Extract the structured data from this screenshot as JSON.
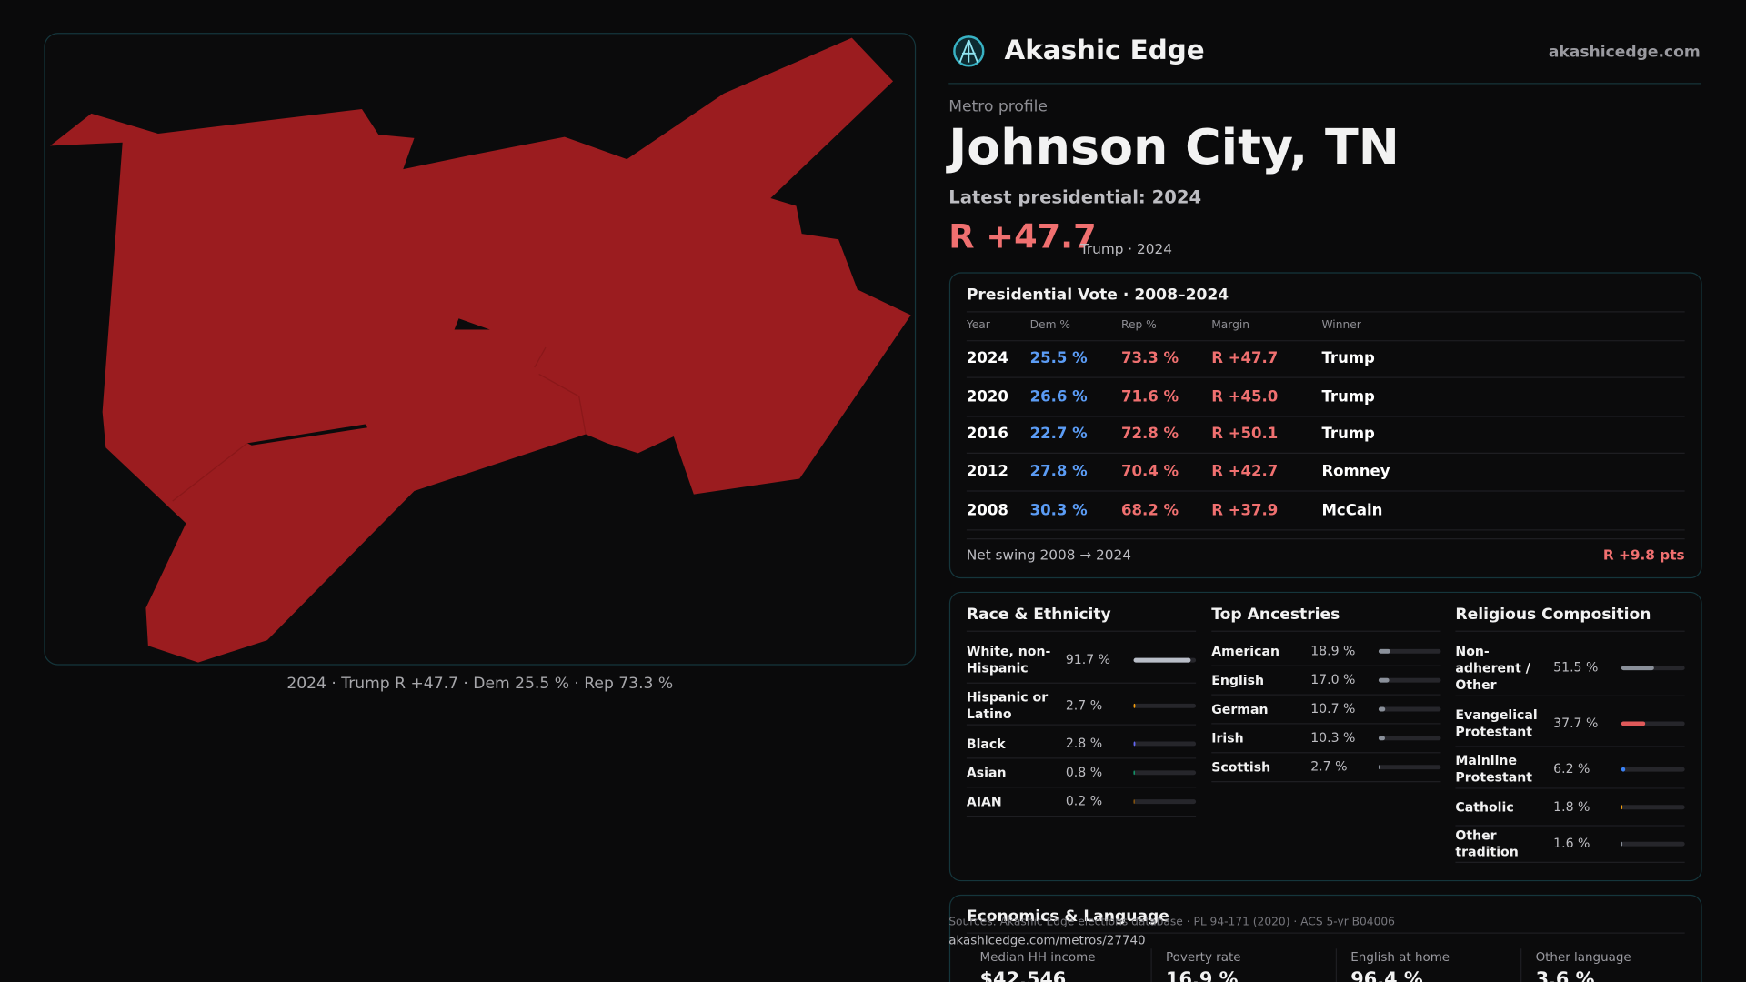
{
  "brand": {
    "name": "Akashic Edge",
    "url": "akashicedge.com"
  },
  "map_caption": "2024 · Trump R +47.7 · Dem 25.5 % · Rep 73.3 %",
  "header": {
    "kicker": "Metro profile",
    "title": "Johnson City, TN",
    "latest": "Latest presidential: 2024",
    "margin": "R +47.7",
    "margin_note": "Trump · 2024"
  },
  "vote_table": {
    "title": "Presidential Vote · 2008–2024",
    "columns": [
      "Year",
      "Dem %",
      "Rep %",
      "Margin",
      "Winner"
    ],
    "rows": [
      [
        "2024",
        "25.5 %",
        "73.3 %",
        "R +47.7",
        "Trump"
      ],
      [
        "2020",
        "26.6 %",
        "71.6 %",
        "R +45.0",
        "Trump"
      ],
      [
        "2016",
        "22.7 %",
        "72.8 %",
        "R +50.1",
        "Trump"
      ],
      [
        "2012",
        "27.8 %",
        "70.4 %",
        "R +42.7",
        "Romney"
      ],
      [
        "2008",
        "30.3 %",
        "68.2 %",
        "R +37.9",
        "McCain"
      ]
    ],
    "swing_label": "Net swing 2008 → 2024",
    "swing": "R +9.8 pts"
  },
  "race": {
    "title": "Race & Ethnicity",
    "items": [
      {
        "name": "White, non-Hispanic",
        "value": 91.7,
        "label": "91.7 %",
        "color": "#b9bec8"
      },
      {
        "name": "Hispanic or Latino",
        "value": 2.7,
        "label": "2.7 %",
        "color": "#f59e0b"
      },
      {
        "name": "Black",
        "value": 2.8,
        "label": "2.8 %",
        "color": "#6366f1"
      },
      {
        "name": "Asian",
        "value": 0.8,
        "label": "0.8 %",
        "color": "#10b981"
      },
      {
        "name": "AIAN",
        "value": 0.2,
        "label": "0.2 %",
        "color": "#a16207"
      }
    ]
  },
  "ancestry": {
    "title": "Top Ancestries",
    "items": [
      {
        "name": "American",
        "value": 18.9,
        "label": "18.9 %",
        "color": "#8a909a"
      },
      {
        "name": "English",
        "value": 17.0,
        "label": "17.0 %",
        "color": "#8a909a"
      },
      {
        "name": "German",
        "value": 10.7,
        "label": "10.7 %",
        "color": "#8a909a"
      },
      {
        "name": "Irish",
        "value": 10.3,
        "label": "10.3 %",
        "color": "#8a909a"
      },
      {
        "name": "Scottish",
        "value": 2.7,
        "label": "2.7 %",
        "color": "#8a909a"
      }
    ]
  },
  "religion": {
    "title": "Religious Composition",
    "items": [
      {
        "name": "Non-adherent / Other",
        "value": 51.5,
        "label": "51.5 %",
        "color": "#8a909a"
      },
      {
        "name": "Evangelical Protestant",
        "value": 37.7,
        "label": "37.7 %",
        "color": "#e05a5a"
      },
      {
        "name": "Mainline Protestant",
        "value": 6.2,
        "label": "6.2 %",
        "color": "#3b82f6"
      },
      {
        "name": "Catholic",
        "value": 1.8,
        "label": "1.8 %",
        "color": "#f59e0b"
      },
      {
        "name": "Other tradition",
        "value": 1.6,
        "label": "1.6 %",
        "color": "#8a909a"
      }
    ]
  },
  "economics": {
    "title": "Economics & Language",
    "stats": [
      {
        "label": "Median HH income",
        "value": "$42,546"
      },
      {
        "label": "Poverty rate",
        "value": "16.9 %"
      },
      {
        "label": "English at home",
        "value": "96.4 %"
      },
      {
        "label": "Other language",
        "value": "3.6 %"
      }
    ]
  },
  "sources": "Sources: Akashic Edge elections database · PL 94-171 (2020) · ACS 5-yr B04006",
  "permalink": "akashicedge.com/metros/27740"
}
